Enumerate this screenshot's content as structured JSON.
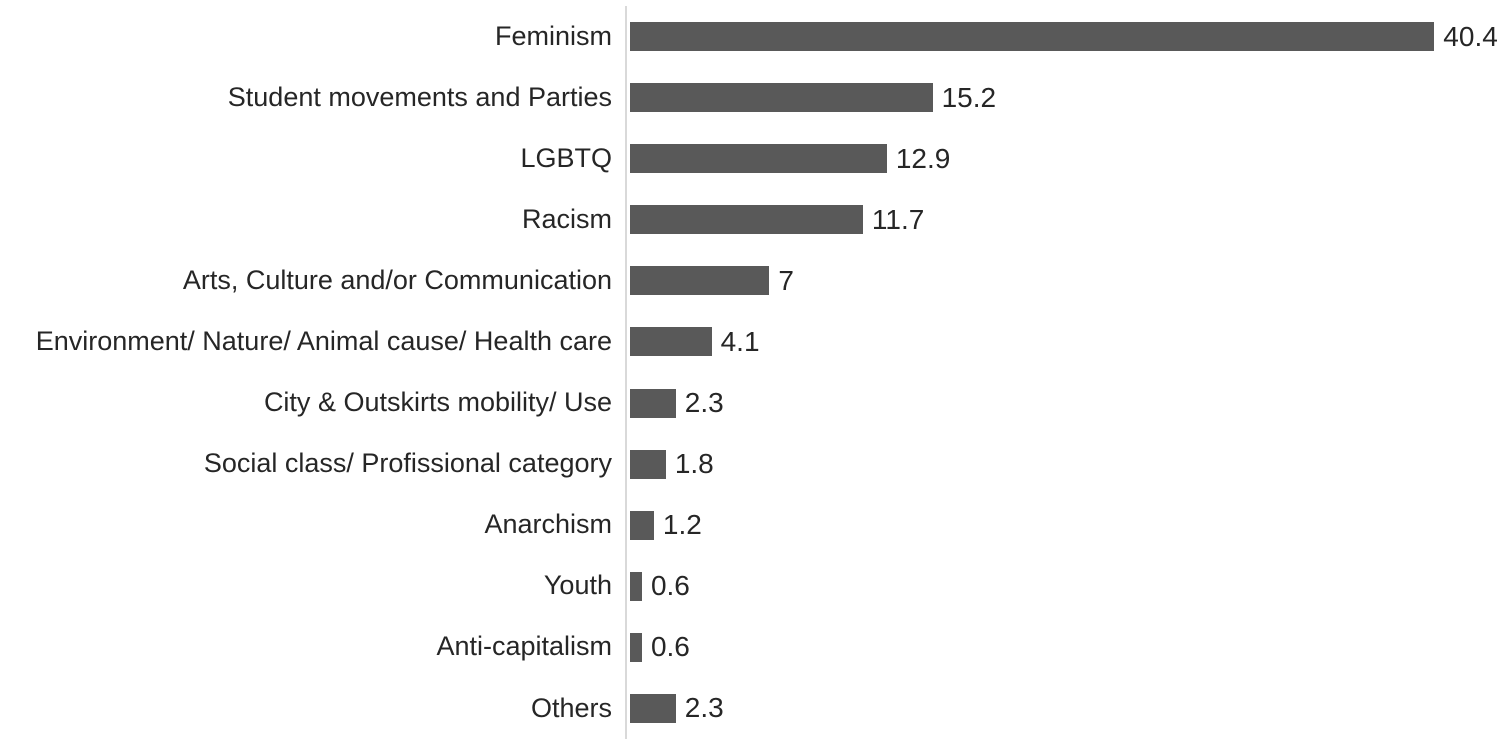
{
  "chart_data": {
    "type": "bar",
    "orientation": "horizontal",
    "title": "",
    "xlabel": "",
    "ylabel": "",
    "categories": [
      "Feminism",
      "Student movements and Parties",
      "LGBTQ",
      "Racism",
      "Arts, Culture and/or Communication",
      "Environment/ Nature/ Animal cause/ Health care",
      "City & Outskirts mobility/ Use",
      "Social class/ Profissional category",
      "Anarchism",
      "Youth",
      "Anti-capitalism",
      "Others"
    ],
    "values": [
      40.4,
      15.2,
      12.9,
      11.7,
      7,
      4.1,
      2.3,
      1.8,
      1.2,
      0.6,
      0.6,
      2.3
    ],
    "display_values": [
      "40.4",
      "15.2",
      "12.9",
      "11.7",
      "7",
      "4.1",
      "2.3",
      "1.8",
      "1.2",
      "0.6",
      "0.6",
      "2.3"
    ],
    "xlim": [
      0,
      43.7
    ],
    "data_labels": "outside-end",
    "grid": false,
    "legend": false,
    "bar_color": "#595959",
    "axis_line_color": "#d9d9d9",
    "text_color": "#262626"
  }
}
